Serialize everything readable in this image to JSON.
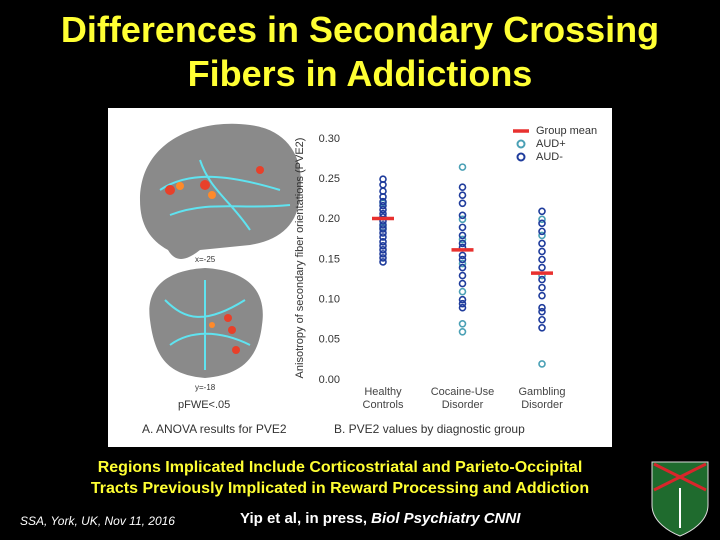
{
  "slide": {
    "title_lines": [
      "Differences in Secondary Crossing",
      "Fibers in Addictions"
    ],
    "caption_lines": [
      "Regions Implicated Include Corticostriatal and Parieto-Occipital",
      "Tracts Previously Implicated in Reward Processing and Addiction"
    ],
    "footer": "SSA, York, UK, Nov 11, 2016",
    "citation": "Yip et al, in press, ",
    "journal": "Biol Psychiatry CNNI",
    "panel_a": {
      "sagittal_label": "x=-25",
      "coronal_label": "y=-18",
      "threshold": "pFWE<.05",
      "caption": "A. ANOVA results for PVE2"
    }
  },
  "chart_data": {
    "type": "strip",
    "caption": "B. PVE2 values by diagnostic group",
    "y_label": "Anisotropy of secondary fiber orientations (PVE2)",
    "categories": [
      "Healthy Controls",
      "Cocaine-Use Disorder",
      "Gambling Disorder"
    ],
    "ylim": [
      0,
      0.3
    ],
    "yticks": [
      {
        "value": 0,
        "label": "0.00"
      },
      {
        "value": 0.05,
        "label": "0.05"
      },
      {
        "value": 0.1,
        "label": "0.10"
      },
      {
        "value": 0.15,
        "label": "0.15"
      },
      {
        "value": 0.2,
        "label": "0.20"
      },
      {
        "value": 0.25,
        "label": "0.25"
      },
      {
        "value": 0.3,
        "label": "0.30"
      }
    ],
    "series": [
      {
        "name": "Group mean",
        "color": "#e8312f",
        "marker": "dash",
        "values": [
          0.201,
          0.162,
          0.133
        ]
      },
      {
        "name": "AUD+",
        "color": "#4aa0b5",
        "marker": "circle",
        "values": [
          [
            0.22,
            0.19
          ],
          [
            0.265,
            0.2,
            0.175,
            0.145,
            0.11,
            0.07,
            0.06
          ],
          [
            0.2,
            0.18,
            0.13,
            0.02
          ]
        ]
      },
      {
        "name": "AUD-",
        "color": "#1f3c9c",
        "marker": "circle",
        "values": [
          [
            0.25,
            0.243,
            0.235,
            0.228,
            0.222,
            0.217,
            0.212,
            0.207,
            0.203,
            0.198,
            0.193,
            0.188,
            0.183,
            0.178,
            0.172,
            0.167,
            0.162,
            0.157,
            0.152,
            0.147
          ],
          [
            0.24,
            0.23,
            0.22,
            0.205,
            0.19,
            0.18,
            0.17,
            0.165,
            0.155,
            0.15,
            0.14,
            0.13,
            0.12,
            0.1,
            0.095,
            0.09
          ],
          [
            0.21,
            0.195,
            0.185,
            0.17,
            0.16,
            0.15,
            0.14,
            0.125,
            0.115,
            0.105,
            0.09,
            0.085,
            0.075,
            0.065
          ]
        ]
      }
    ]
  }
}
